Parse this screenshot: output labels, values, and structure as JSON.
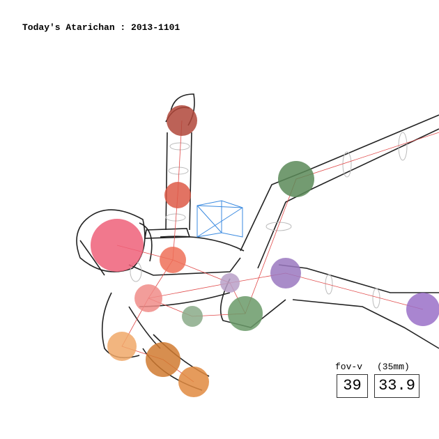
{
  "header": {
    "title": "Today's Atarichan : 2013-1101"
  },
  "fov": {
    "label": "fov-v",
    "unit": "(35mm)",
    "vertical": 39,
    "focal": 33.9
  }
}
